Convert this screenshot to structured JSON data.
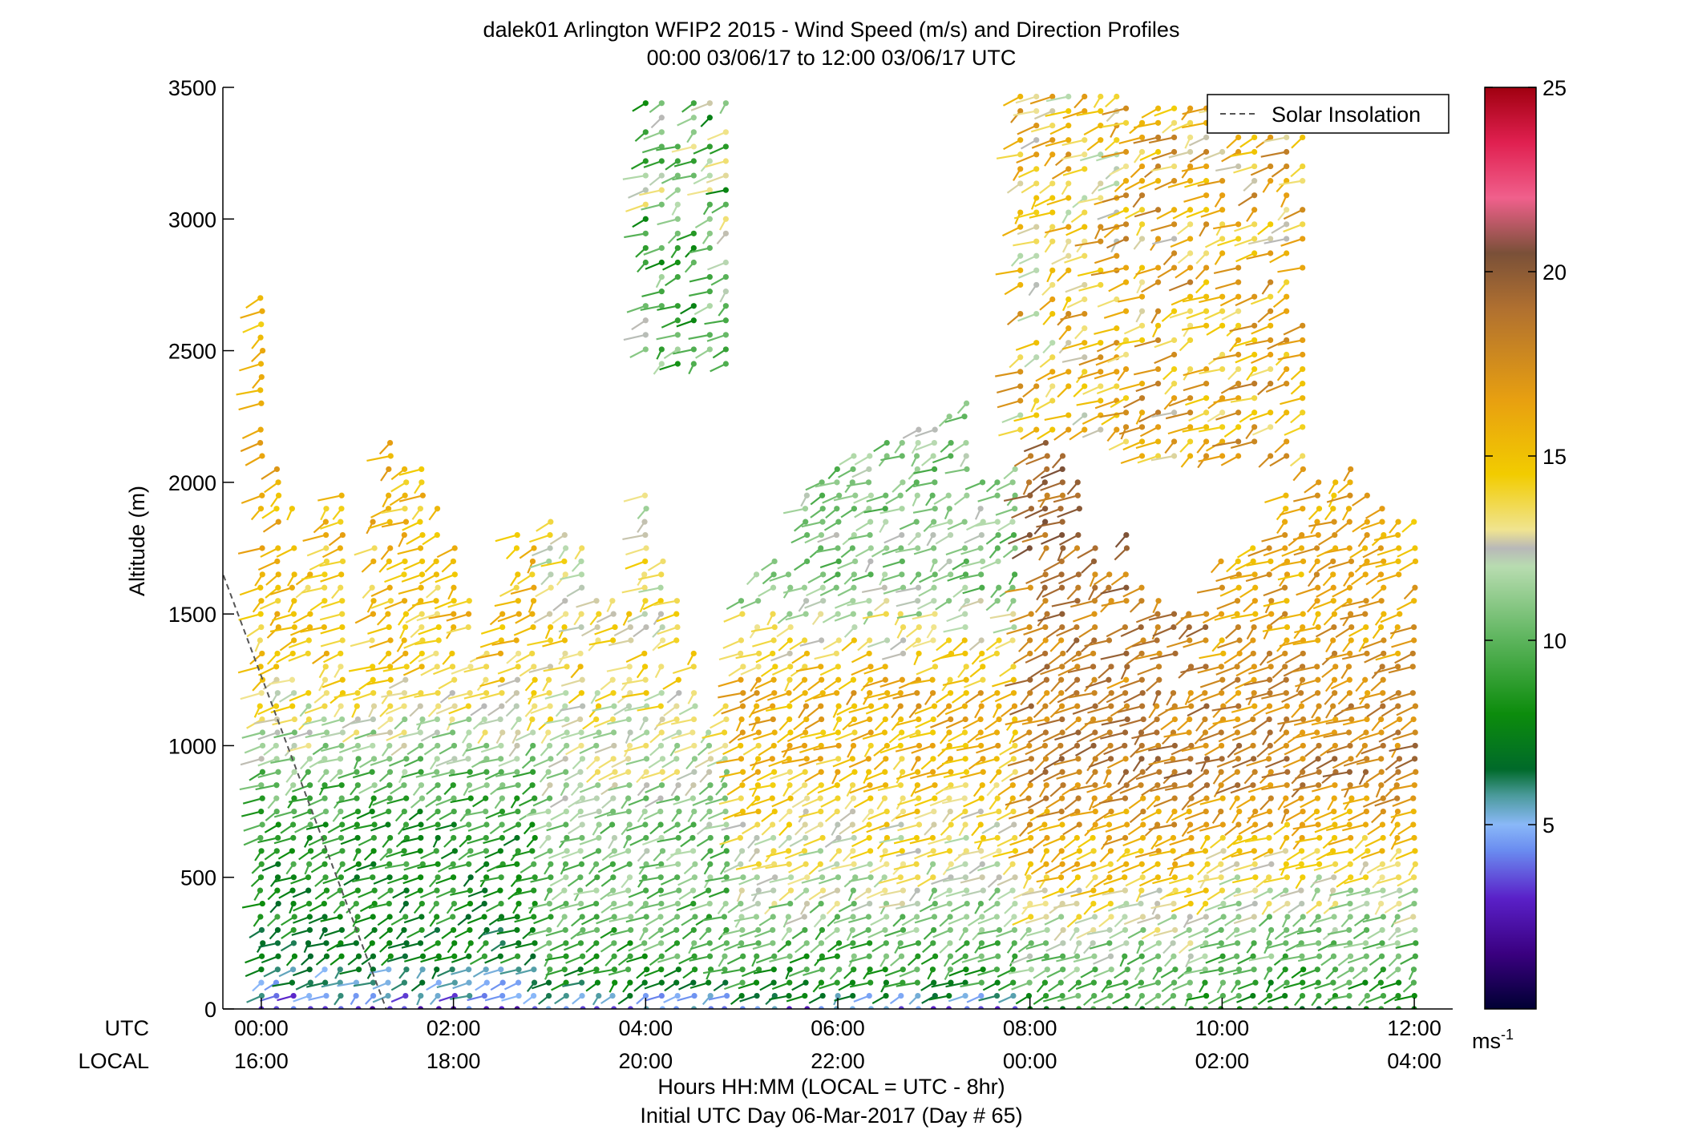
{
  "chart_data": {
    "type": "scatter",
    "title": "dalek01 Arlington WFIP2 2015 - Wind Speed (m/s) and Direction Profiles",
    "subtitle": "00:00 03/06/17 to 12:00 03/06/17  UTC",
    "ylabel": "Altitude (m)",
    "xlabel": "Hours HH:MM  (LOCAL = UTC - 8hr)",
    "xlabel2": "Initial UTC Day 06-Mar-2017 (Day # 65)",
    "row_label_utc": "UTC",
    "row_label_local": "LOCAL",
    "xlim": [
      -0.4,
      12.4
    ],
    "ylim": [
      0,
      3500
    ],
    "yticks": [
      0,
      500,
      1000,
      1500,
      2000,
      2500,
      3000,
      3500
    ],
    "ytick_labels": [
      "0",
      "500",
      "1000",
      "1500",
      "2000",
      "2500",
      "3000",
      "3500"
    ],
    "xticks": [
      0,
      2,
      4,
      6,
      8,
      10,
      12
    ],
    "xtick_labels_utc": [
      "00:00",
      "02:00",
      "04:00",
      "06:00",
      "08:00",
      "10:00",
      "12:00"
    ],
    "xtick_labels_local": [
      "16:00",
      "18:00",
      "20:00",
      "22:00",
      "00:00",
      "02:00",
      "04:00"
    ],
    "legend": {
      "label": "Solar Insolation",
      "placement": "top-right"
    },
    "solar_insolation": {
      "x": [
        -0.5,
        1.3
      ],
      "y": [
        1750,
        0
      ],
      "color": "#555555"
    },
    "colorbar": {
      "range": [
        0,
        25
      ],
      "ticks": [
        5,
        10,
        15,
        20,
        25
      ],
      "tick_labels": [
        "5",
        "10",
        "15",
        "20",
        "25"
      ],
      "unit_label": "ms",
      "unit_exponent": "-1",
      "colors": [
        {
          "v": 0,
          "c": "#000033"
        },
        {
          "v": 1.5,
          "c": "#3a0080"
        },
        {
          "v": 3,
          "c": "#5a20c8"
        },
        {
          "v": 4.3,
          "c": "#6a8cf0"
        },
        {
          "v": 5,
          "c": "#8ab8f8"
        },
        {
          "v": 5.8,
          "c": "#4a9a9a"
        },
        {
          "v": 6.5,
          "c": "#006a2a"
        },
        {
          "v": 8,
          "c": "#0c8c0c"
        },
        {
          "v": 10,
          "c": "#5cb45c"
        },
        {
          "v": 12,
          "c": "#b8dcb0"
        },
        {
          "v": 12.5,
          "c": "#b8b8b8"
        },
        {
          "v": 13,
          "c": "#f0e490"
        },
        {
          "v": 14.5,
          "c": "#f2cc00"
        },
        {
          "v": 16.5,
          "c": "#e8a010"
        },
        {
          "v": 19,
          "c": "#b07030"
        },
        {
          "v": 20.5,
          "c": "#7a5038"
        },
        {
          "v": 22,
          "c": "#f0608c"
        },
        {
          "v": 23.5,
          "c": "#e02050"
        },
        {
          "v": 25,
          "c": "#a00010"
        }
      ]
    },
    "profiles": {
      "description_times": "profile times (UTC hours) at which wind barbs are drawn",
      "times": [
        0.0,
        0.167,
        0.333,
        0.5,
        0.667,
        0.833,
        1.0,
        1.167,
        1.333,
        1.5,
        1.667,
        1.833,
        2.0,
        2.167,
        2.333,
        2.5,
        2.667,
        2.833,
        3.0,
        3.167,
        3.333,
        3.5,
        3.667,
        3.833,
        4.0,
        4.167,
        4.333,
        4.5,
        4.667,
        4.833,
        5.0,
        5.167,
        5.333,
        5.5,
        5.667,
        5.833,
        6.0,
        6.167,
        6.333,
        6.5,
        6.667,
        6.833,
        7.0,
        7.167,
        7.333,
        7.5,
        7.667,
        7.833,
        8.0,
        8.167,
        8.333,
        8.5,
        8.667,
        8.833,
        9.0,
        9.167,
        9.333,
        9.5,
        9.667,
        9.833,
        10.0,
        10.167,
        10.333,
        10.5,
        10.667,
        10.833,
        11.0,
        11.167,
        11.333,
        11.5,
        11.667,
        11.833,
        12.0
      ],
      "top_altitude": [
        2700,
        2050,
        1900,
        1650,
        1900,
        1950,
        1200,
        1850,
        2150,
        2050,
        2050,
        1900,
        1750,
        1550,
        1350,
        1500,
        1800,
        1900,
        1850,
        1800,
        1750,
        1600,
        1550,
        1500,
        2000,
        1750,
        1550,
        1350,
        1050,
        1150,
        1550,
        1650,
        1700,
        1750,
        1950,
        2000,
        2050,
        2100,
        2100,
        2150,
        2250,
        2200,
        2200,
        2250,
        2300,
        2000,
        2000,
        2050,
        2100,
        2150,
        2100,
        2000,
        1750,
        1650,
        1800,
        1600,
        1550,
        1500,
        1500,
        1500,
        1750,
        1700,
        1750,
        1800,
        1950,
        2050,
        2000,
        2000,
        2050,
        1950,
        1900,
        1850,
        1850
      ],
      "speed_bands": [
        {
          "t0": 0.0,
          "t1": 3.0,
          "levels": [
            [
              0,
              3.5
            ],
            [
              100,
              5.5
            ],
            [
              200,
              7.5
            ],
            [
              700,
              8.5
            ],
            [
              1300,
              14.5
            ],
            [
              2000,
              15.5
            ]
          ]
        },
        {
          "t0": 3.0,
          "t1": 5.0,
          "levels": [
            [
              0,
              4.5
            ],
            [
              200,
              9.5
            ],
            [
              700,
              11
            ],
            [
              1300,
              14
            ],
            [
              1700,
              13
            ]
          ]
        },
        {
          "t0": 5.0,
          "t1": 8.0,
          "levels": [
            [
              0,
              4
            ],
            [
              100,
              8.5
            ],
            [
              400,
              11.5
            ],
            [
              800,
              14.5
            ],
            [
              1200,
              16
            ],
            [
              1600,
              11
            ]
          ]
        },
        {
          "t0": 8.0,
          "t1": 10.0,
          "levels": [
            [
              0,
              8.5
            ],
            [
              300,
              12
            ],
            [
              500,
              14.5
            ],
            [
              900,
              18.5
            ],
            [
              1300,
              18
            ],
            [
              1800,
              19
            ]
          ]
        },
        {
          "t0": 10.0,
          "t1": 12.0,
          "levels": [
            [
              0,
              8
            ],
            [
              200,
              10
            ],
            [
              500,
              13
            ],
            [
              900,
              18.5
            ],
            [
              1300,
              17
            ],
            [
              1800,
              16
            ]
          ]
        }
      ]
    },
    "upper_barbs": [
      {
        "t": [
          4.0,
          5.0
        ],
        "alt": [
          2450,
          3470
        ],
        "speed": 10.5
      },
      {
        "t": [
          7.9,
          9.0
        ],
        "alt": [
          2200,
          3470
        ],
        "speed": 14.8
      },
      {
        "t": [
          9.0,
          11.0
        ],
        "alt": [
          2100,
          3450
        ],
        "speed": 15.5
      }
    ]
  }
}
